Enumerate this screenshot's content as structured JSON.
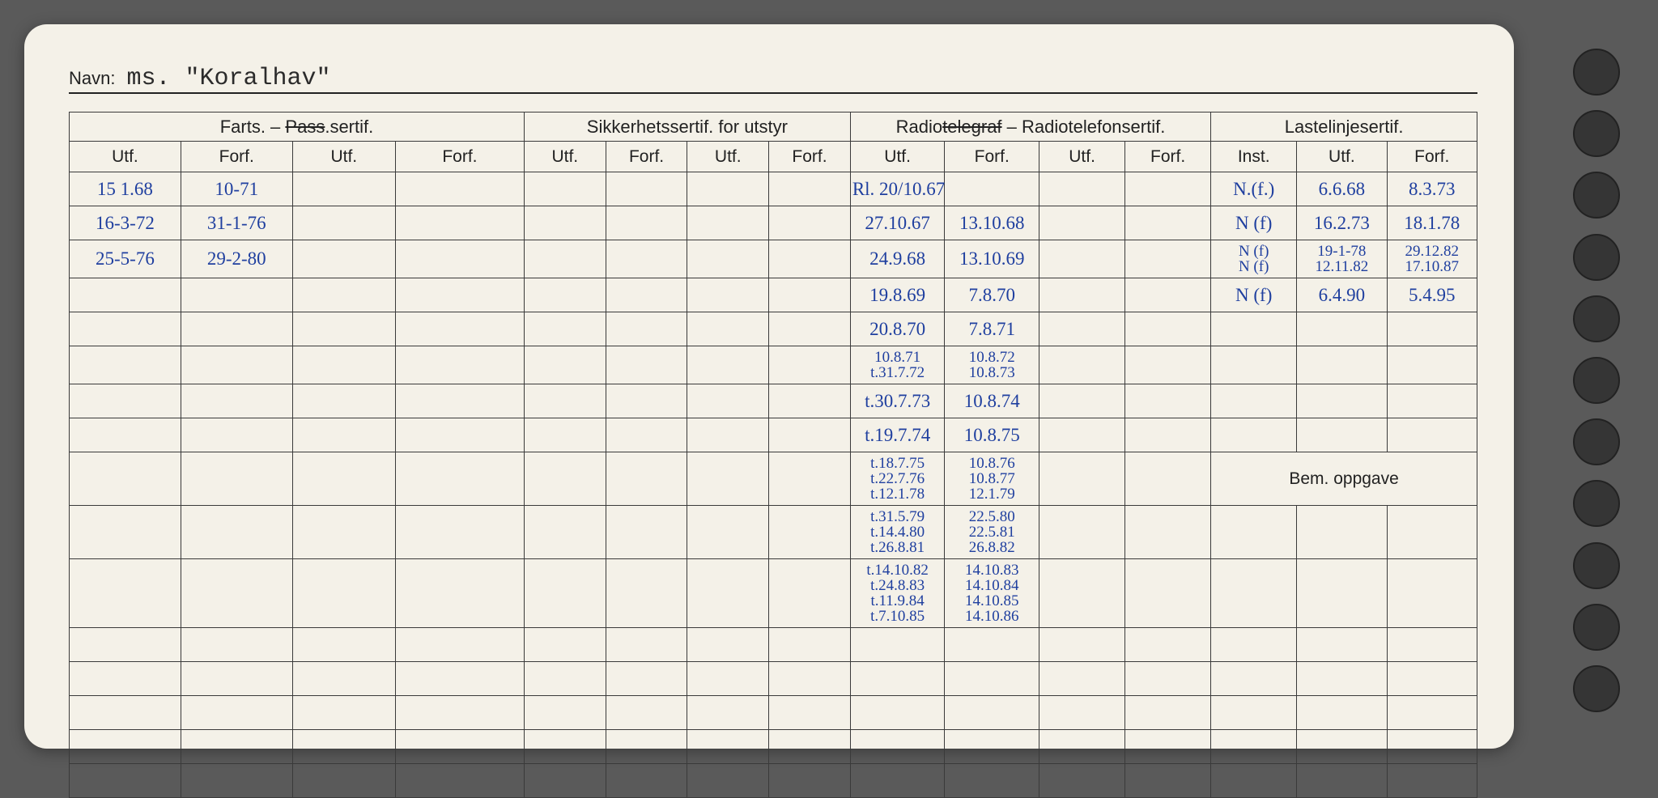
{
  "background_color": "#5a5a5a",
  "card": {
    "color": "#f4f1e8",
    "radius": 28
  },
  "navn": {
    "label": "Navn:",
    "value": "ms. \"Koralhav\""
  },
  "sections": {
    "farts": {
      "title": "Farts. – Pass.sertif.",
      "strike_word": "Pass"
    },
    "sikker": "Sikkerhetssertif. for utstyr",
    "radio": {
      "title": "Radiotelegraf – Radiotelefonsertif.",
      "strike_word": "telegraf"
    },
    "laste": "Lastelinjesertif."
  },
  "subheads": {
    "utf": "Utf.",
    "forf": "Forf.",
    "inst": "Inst."
  },
  "bem": "Bem. oppgave",
  "hand_color": "#1f3f9f",
  "rows": {
    "farts": [
      {
        "utf": "15 1.68",
        "forf": "10-71"
      },
      {
        "utf": "16-3-72",
        "forf": "31-1-76"
      },
      {
        "utf": "25-5-76",
        "forf": "29-2-80"
      }
    ],
    "radio": [
      {
        "utf": "Rl. 20/10.67",
        "forf": ""
      },
      {
        "utf": "27.10.67",
        "forf": "13.10.68"
      },
      {
        "utf": "24.9.68",
        "forf": "13.10.69"
      },
      {
        "utf": "19.8.69",
        "forf": "7.8.70"
      },
      {
        "utf": "20.8.70",
        "forf": "7.8.71"
      },
      {
        "utf": "10.8.71\nt.31.7.72",
        "forf": "10.8.72\n10.8.73"
      },
      {
        "utf": "t.30.7.73",
        "forf": "10.8.74"
      },
      {
        "utf": "t.19.7.74",
        "forf": "10.8.75"
      },
      {
        "utf": "t.18.7.75\nt.22.7.76\nt.12.1.78",
        "forf": "10.8.76\n10.8.77\n12.1.79"
      },
      {
        "utf": "t.31.5.79\nt.14.4.80\nt.26.8.81",
        "forf": "22.5.80\n22.5.81\n26.8.82"
      },
      {
        "utf": "t.14.10.82\nt.24.8.83\nt.11.9.84\nt.7.10.85",
        "forf": "14.10.83\n14.10.84\n14.10.85\n14.10.86"
      }
    ],
    "laste": [
      {
        "inst": "N.(f.)",
        "utf": "6.6.68",
        "forf": "8.3.73"
      },
      {
        "inst": "N (f)",
        "utf": "16.2.73",
        "forf": "18.1.78"
      },
      {
        "inst": "N (f)\nN (f)",
        "utf": "19-1-78\n12.11.82",
        "forf": "29.12.82\n17.10.87"
      },
      {
        "inst": "N (f)",
        "utf": "6.4.90",
        "forf": "5.4.95"
      }
    ]
  },
  "num_body_rows": 16
}
